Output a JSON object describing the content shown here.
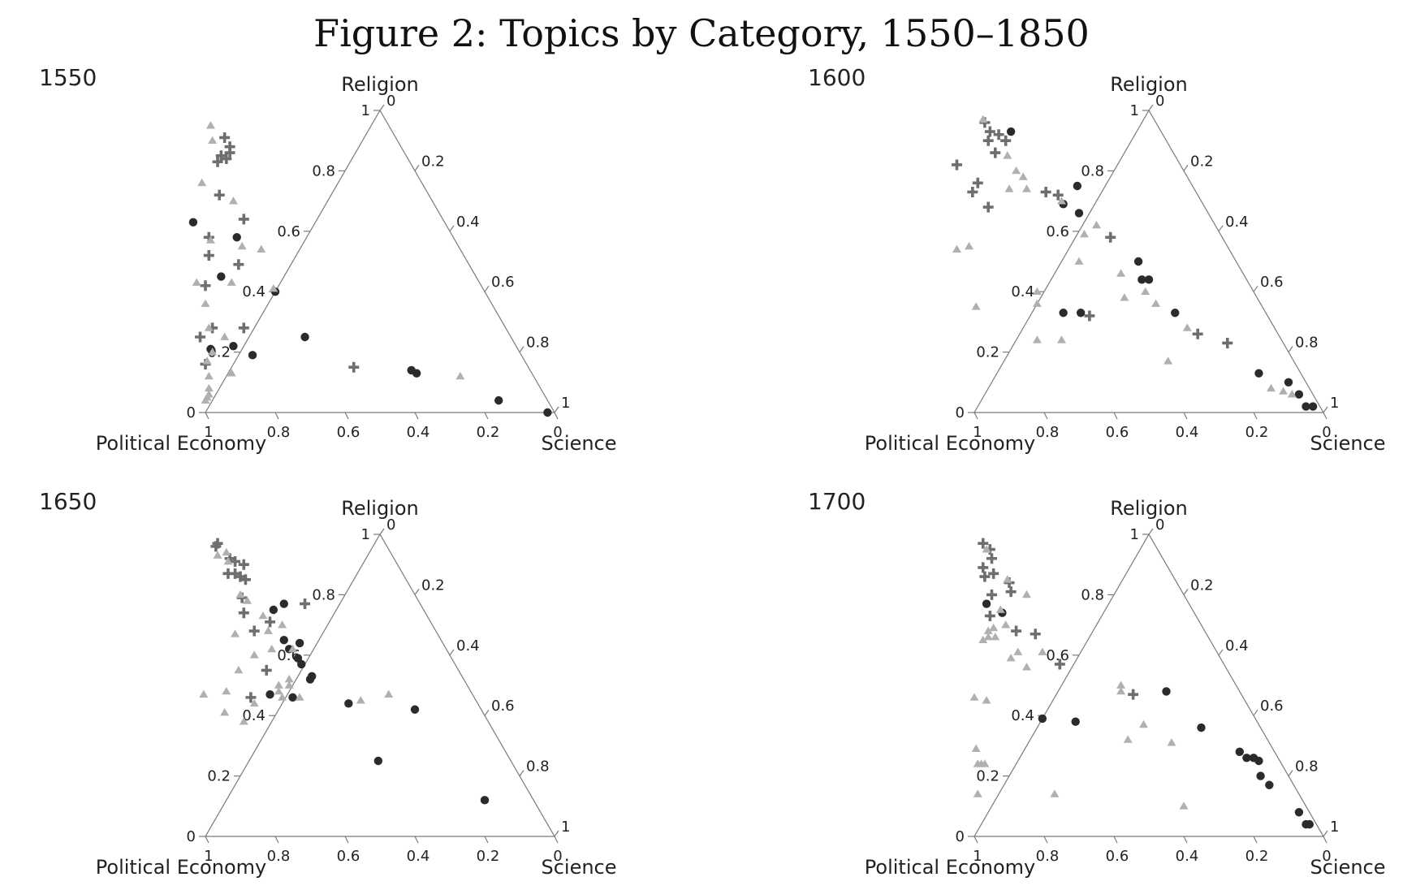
{
  "title": "Figure 2: Topics by Category, 1550–1850",
  "chart_data": [
    {
      "type": "scatter",
      "panel": "1550",
      "axes": {
        "top": "Religion",
        "left": "Political Economy",
        "right": "Science"
      },
      "ticks": [
        "0",
        "0.2",
        "0.4",
        "0.6",
        "0.8",
        "1"
      ],
      "series": [
        {
          "marker": "circle",
          "color": "#2b2b2b",
          "points": [
            [
              0.88,
              0.21
            ],
            [
              0.81,
              0.22
            ],
            [
              0.77,
              0.19
            ],
            [
              0.72,
              0.63
            ],
            [
              0.73,
              0.45
            ],
            [
              0.62,
              0.58
            ],
            [
              0.6,
              0.4
            ],
            [
              0.59,
              0.25
            ],
            [
              0.34,
              0.14
            ],
            [
              0.33,
              0.13
            ],
            [
              0.14,
              0.04
            ],
            [
              0.02,
              0.0
            ]
          ]
        },
        {
          "marker": "plus",
          "color": "#6e6e6e",
          "points": [
            [
              0.49,
              0.91
            ],
            [
              0.49,
              0.88
            ],
            [
              0.5,
              0.86
            ],
            [
              0.53,
              0.85
            ],
            [
              0.52,
              0.84
            ],
            [
              0.55,
              0.83
            ],
            [
              0.6,
              0.72
            ],
            [
              0.57,
              0.64
            ],
            [
              0.7,
              0.58
            ],
            [
              0.73,
              0.52
            ],
            [
              0.66,
              0.49
            ],
            [
              0.79,
              0.42
            ],
            [
              0.89,
              0.25
            ],
            [
              0.84,
              0.28
            ],
            [
              0.92,
              0.16
            ],
            [
              0.5,
              0.15
            ],
            [
              0.75,
              0.28
            ]
          ]
        },
        {
          "marker": "triangle",
          "color": "#b0b0b0",
          "points": [
            [
              0.51,
              0.95
            ],
            [
              0.53,
              0.9
            ],
            [
              0.63,
              0.76
            ],
            [
              0.57,
              0.7
            ],
            [
              0.7,
              0.57
            ],
            [
              0.62,
              0.55
            ],
            [
              0.57,
              0.54
            ],
            [
              0.71,
              0.43
            ],
            [
              0.6,
              0.41
            ],
            [
              0.81,
              0.43
            ],
            [
              0.82,
              0.36
            ],
            [
              0.85,
              0.28
            ],
            [
              0.82,
              0.25
            ],
            [
              0.88,
              0.2
            ],
            [
              0.86,
              0.13
            ],
            [
              0.91,
              0.17
            ],
            [
              0.93,
              0.12
            ],
            [
              0.95,
              0.08
            ],
            [
              0.96,
              0.06
            ],
            [
              0.98,
              0.04
            ],
            [
              0.97,
              0.05
            ],
            [
              0.21,
              0.12
            ]
          ]
        }
      ]
    },
    {
      "type": "scatter",
      "panel": "1600",
      "axes": {
        "top": "Religion",
        "left": "Political Economy",
        "right": "Science"
      },
      "ticks": [
        "0",
        "0.2",
        "0.4",
        "0.6",
        "0.8",
        "1"
      ],
      "series": [
        {
          "marker": "circle",
          "color": "#2b2b2b",
          "points": [
            [
              0.43,
              0.93
            ],
            [
              0.33,
              0.75
            ],
            [
              0.4,
              0.69
            ],
            [
              0.37,
              0.66
            ],
            [
              0.28,
              0.5
            ],
            [
              0.3,
              0.44
            ],
            [
              0.28,
              0.44
            ],
            [
              0.26,
              0.33
            ],
            [
              0.58,
              0.33
            ],
            [
              0.53,
              0.33
            ],
            [
              0.12,
              0.13
            ],
            [
              0.05,
              0.1
            ],
            [
              0.04,
              0.06
            ],
            [
              0.04,
              0.02
            ],
            [
              0.02,
              0.02
            ]
          ]
        },
        {
          "marker": "plus",
          "color": "#6e6e6e",
          "points": [
            [
              0.49,
              0.96
            ],
            [
              0.49,
              0.93
            ],
            [
              0.51,
              0.9
            ],
            [
              0.47,
              0.92
            ],
            [
              0.46,
              0.9
            ],
            [
              0.51,
              0.86
            ],
            [
              0.64,
              0.82
            ],
            [
              0.64,
              0.73
            ],
            [
              0.61,
              0.76
            ],
            [
              0.62,
              0.68
            ],
            [
              0.43,
              0.73
            ],
            [
              0.4,
              0.72
            ],
            [
              0.32,
              0.58
            ],
            [
              0.51,
              0.32
            ],
            [
              0.23,
              0.26
            ],
            [
              0.16,
              0.23
            ]
          ]
        },
        {
          "marker": "triangle",
          "color": "#b0b0b0",
          "points": [
            [
              0.49,
              0.97
            ],
            [
              0.48,
              0.85
            ],
            [
              0.48,
              0.8
            ],
            [
              0.47,
              0.78
            ],
            [
              0.48,
              0.74
            ],
            [
              0.53,
              0.74
            ],
            [
              0.4,
              0.7
            ],
            [
              0.34,
              0.62
            ],
            [
              0.39,
              0.59
            ],
            [
              0.45,
              0.5
            ],
            [
              0.35,
              0.46
            ],
            [
              0.31,
              0.4
            ],
            [
              0.38,
              0.38
            ],
            [
              0.3,
              0.36
            ],
            [
              0.25,
              0.28
            ],
            [
              0.62,
              0.4
            ],
            [
              0.64,
              0.36
            ],
            [
              0.82,
              0.35
            ],
            [
              0.74,
              0.55
            ],
            [
              0.78,
              0.54
            ],
            [
              0.7,
              0.24
            ],
            [
              0.63,
              0.24
            ],
            [
              0.36,
              0.17
            ],
            [
              0.11,
              0.08
            ],
            [
              0.08,
              0.07
            ],
            [
              0.06,
              0.06
            ]
          ]
        }
      ]
    },
    {
      "type": "scatter",
      "panel": "1650",
      "axes": {
        "top": "Religion",
        "left": "Political Economy",
        "right": "Science"
      },
      "ticks": [
        "0",
        "0.2",
        "0.4",
        "0.6",
        "0.8",
        "1"
      ],
      "series": [
        {
          "marker": "circle",
          "color": "#2b2b2b",
          "points": [
            [
              0.39,
              0.77
            ],
            [
              0.43,
              0.75
            ],
            [
              0.45,
              0.65
            ],
            [
              0.41,
              0.64
            ],
            [
              0.45,
              0.62
            ],
            [
              0.44,
              0.59
            ],
            [
              0.44,
              0.57
            ],
            [
              0.44,
              0.52
            ],
            [
              0.43,
              0.53
            ],
            [
              0.58,
              0.47
            ],
            [
              0.52,
              0.46
            ],
            [
              0.37,
              0.44
            ],
            [
              0.19,
              0.42
            ],
            [
              0.38,
              0.25
            ],
            [
              0.14,
              0.12
            ]
          ]
        },
        {
          "marker": "plus",
          "color": "#6e6e6e",
          "points": [
            [
              0.48,
              0.97
            ],
            [
              0.49,
              0.96
            ],
            [
              0.47,
              0.92
            ],
            [
              0.46,
              0.91
            ],
            [
              0.44,
              0.9
            ],
            [
              0.5,
              0.87
            ],
            [
              0.48,
              0.87
            ],
            [
              0.47,
              0.86
            ],
            [
              0.46,
              0.85
            ],
            [
              0.33,
              0.77
            ],
            [
              0.5,
              0.79
            ],
            [
              0.52,
              0.74
            ],
            [
              0.46,
              0.71
            ],
            [
              0.52,
              0.68
            ],
            [
              0.55,
              0.55
            ],
            [
              0.64,
              0.46
            ]
          ]
        },
        {
          "marker": "triangle",
          "color": "#b0b0b0",
          "points": [
            [
              0.47,
              0.94
            ],
            [
              0.5,
              0.93
            ],
            [
              0.48,
              0.91
            ],
            [
              0.5,
              0.8
            ],
            [
              0.49,
              0.78
            ],
            [
              0.47,
              0.73
            ],
            [
              0.43,
              0.7
            ],
            [
              0.48,
              0.68
            ],
            [
              0.5,
              0.62
            ],
            [
              0.44,
              0.62
            ],
            [
              0.56,
              0.6
            ],
            [
              0.58,
              0.67
            ],
            [
              0.5,
              0.52
            ],
            [
              0.51,
              0.5
            ],
            [
              0.54,
              0.5
            ],
            [
              0.55,
              0.48
            ],
            [
              0.55,
              0.46
            ],
            [
              0.5,
              0.46
            ],
            [
              0.33,
              0.45
            ],
            [
              0.24,
              0.47
            ],
            [
              0.63,
              0.55
            ],
            [
              0.7,
              0.48
            ],
            [
              0.64,
              0.44
            ],
            [
              0.7,
              0.38
            ],
            [
              0.74,
              0.41
            ],
            [
              0.77,
              0.47
            ]
          ]
        }
      ]
    },
    {
      "type": "scatter",
      "panel": "1700",
      "axes": {
        "top": "Religion",
        "left": "Political Economy",
        "right": "Science"
      },
      "ticks": [
        "0",
        "0.2",
        "0.4",
        "0.6",
        "0.8",
        "1"
      ],
      "series": [
        {
          "marker": "circle",
          "color": "#2b2b2b",
          "points": [
            [
              0.58,
              0.77
            ],
            [
              0.55,
              0.74
            ],
            [
              0.21,
              0.48
            ],
            [
              0.61,
              0.39
            ],
            [
              0.52,
              0.38
            ],
            [
              0.17,
              0.36
            ],
            [
              0.1,
              0.28
            ],
            [
              0.09,
              0.26
            ],
            [
              0.07,
              0.26
            ],
            [
              0.06,
              0.25
            ],
            [
              0.08,
              0.2
            ],
            [
              0.07,
              0.17
            ],
            [
              0.03,
              0.08
            ],
            [
              0.03,
              0.04
            ],
            [
              0.02,
              0.04
            ]
          ]
        },
        {
          "marker": "plus",
          "color": "#6e6e6e",
          "points": [
            [
              0.49,
              0.97
            ],
            [
              0.48,
              0.95
            ],
            [
              0.49,
              0.92
            ],
            [
              0.53,
              0.89
            ],
            [
              0.51,
              0.87
            ],
            [
              0.54,
              0.86
            ],
            [
              0.48,
              0.84
            ],
            [
              0.55,
              0.8
            ],
            [
              0.49,
              0.81
            ],
            [
              0.59,
              0.73
            ],
            [
              0.54,
              0.68
            ],
            [
              0.49,
              0.67
            ],
            [
              0.47,
              0.57
            ],
            [
              0.31,
              0.47
            ]
          ]
        },
        {
          "marker": "triangle",
          "color": "#b0b0b0",
          "points": [
            [
              0.49,
              0.95
            ],
            [
              0.48,
              0.85
            ],
            [
              0.45,
              0.8
            ],
            [
              0.55,
              0.75
            ],
            [
              0.56,
              0.7
            ],
            [
              0.6,
              0.69
            ],
            [
              0.61,
              0.66
            ],
            [
              0.62,
              0.68
            ],
            [
              0.63,
              0.66
            ],
            [
              0.65,
              0.65
            ],
            [
              0.57,
              0.61
            ],
            [
              0.5,
              0.61
            ],
            [
              0.6,
              0.59
            ],
            [
              0.57,
              0.56
            ],
            [
              0.33,
              0.5
            ],
            [
              0.34,
              0.48
            ],
            [
              0.77,
              0.46
            ],
            [
              0.74,
              0.45
            ],
            [
              0.85,
              0.29
            ],
            [
              0.86,
              0.24
            ],
            [
              0.87,
              0.24
            ],
            [
              0.85,
              0.24
            ],
            [
              0.92,
              0.14
            ],
            [
              0.7,
              0.14
            ],
            [
              0.33,
              0.37
            ],
            [
              0.28,
              0.31
            ],
            [
              0.4,
              0.32
            ],
            [
              0.35,
              0.1
            ]
          ]
        }
      ]
    }
  ]
}
